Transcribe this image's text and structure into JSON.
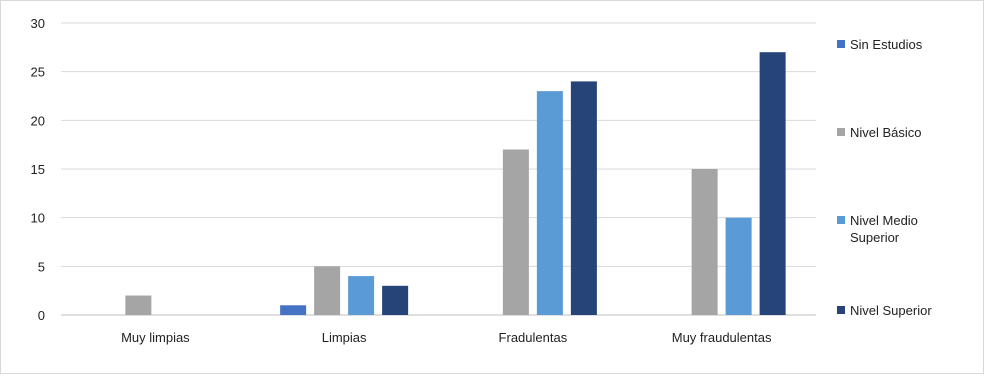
{
  "chart_data": {
    "type": "bar",
    "title": "",
    "xlabel": "",
    "ylabel": "",
    "categories": [
      "Muy limpias",
      "Limpias",
      "Fradulentas",
      "Muy fraudulentas"
    ],
    "ylim": [
      0,
      30
    ],
    "yticks": [
      0,
      5,
      10,
      15,
      20,
      25,
      30
    ],
    "grid": true,
    "legend_position": "right",
    "series": [
      {
        "name": "Sin Estudios",
        "color": "#4472c4",
        "values": [
          0,
          1,
          0,
          0
        ]
      },
      {
        "name": "Nivel Básico",
        "color": "#a5a5a5",
        "values": [
          2,
          5,
          17,
          15
        ]
      },
      {
        "name": "Nivel Medio Superior",
        "color": "#5b9bd5",
        "values": [
          0,
          4,
          23,
          10
        ]
      },
      {
        "name": "Nivel Superior",
        "color": "#264478",
        "values": [
          0,
          3,
          24,
          27
        ]
      }
    ]
  }
}
